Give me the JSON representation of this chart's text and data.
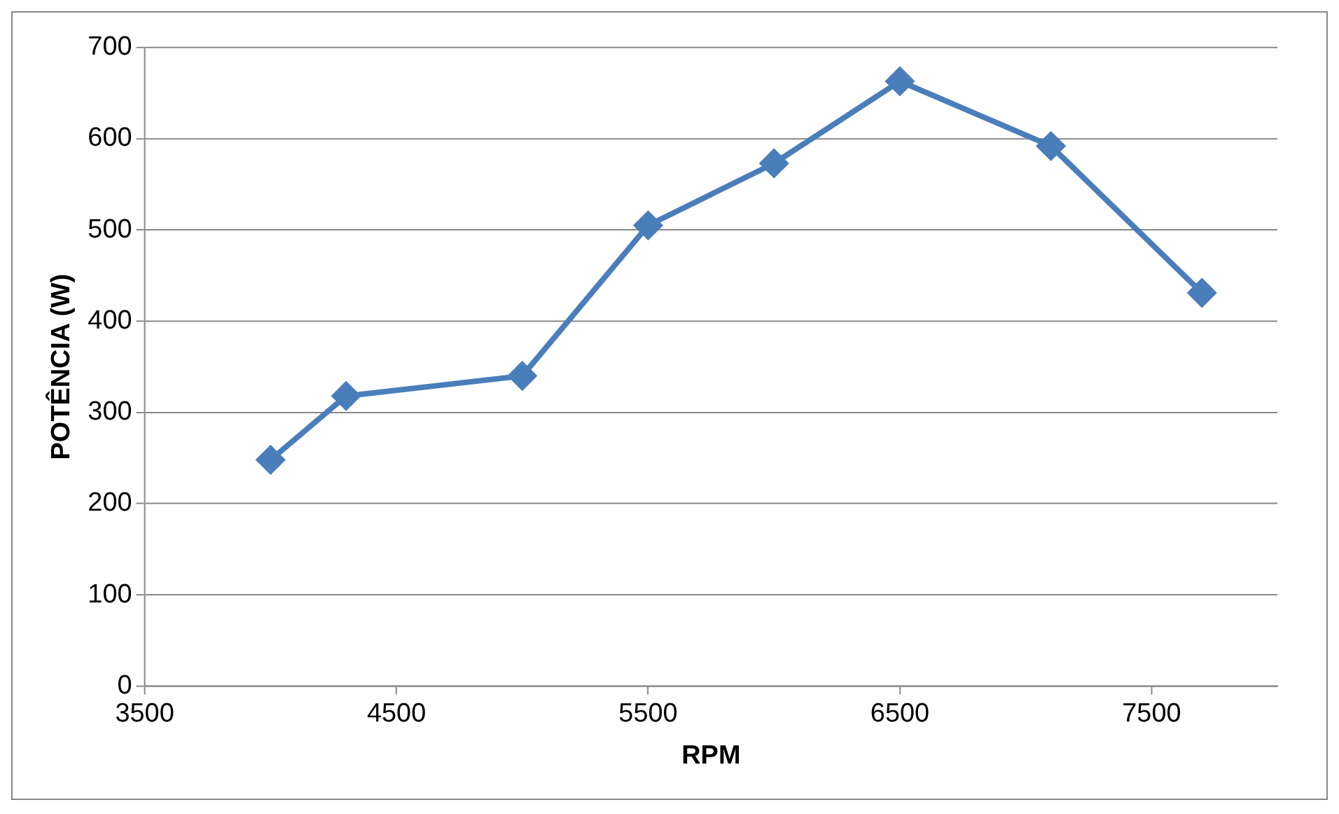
{
  "chart_data": {
    "type": "line",
    "xlabel": "RPM",
    "ylabel": "POTÊNCIA (W)",
    "x": [
      4000,
      4300,
      5000,
      5500,
      6000,
      6500,
      7100,
      7700
    ],
    "series": [
      {
        "color": "#4a7ebb",
        "values": [
          248,
          318,
          340,
          505,
          573,
          663,
          592,
          431
        ]
      }
    ],
    "xlim": [
      3500,
      8000
    ],
    "xticks": [
      3500,
      4500,
      5500,
      6500,
      7500
    ],
    "ylim": [
      0,
      700
    ],
    "yticks": [
      0,
      100,
      200,
      300,
      400,
      500,
      600,
      700
    ],
    "grid": "y",
    "legend": false,
    "marker": "diamond",
    "line_style": "solid"
  }
}
